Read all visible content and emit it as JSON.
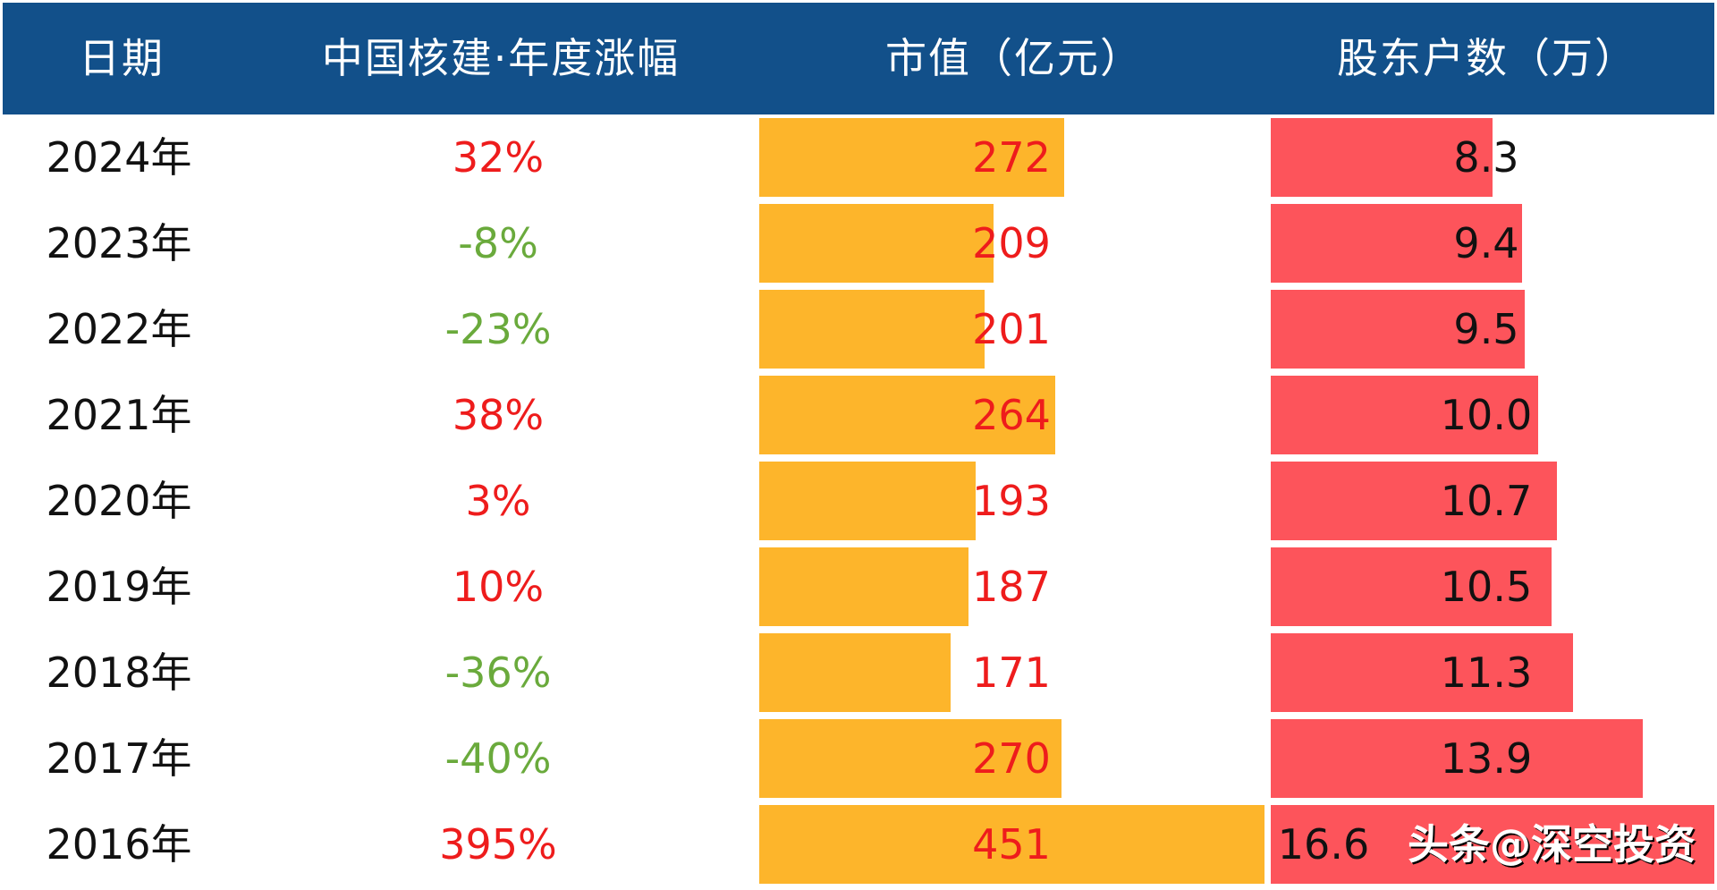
{
  "chart_data": {
    "type": "table",
    "columns": [
      "日期",
      "中国核建·年度涨幅",
      "市值（亿元）",
      "股东户数（万）"
    ],
    "rows": [
      {
        "date": "2024年",
        "change": "32%",
        "cap": 272,
        "cap_label": "272",
        "holders": 8.3,
        "holders_label": "8.3"
      },
      {
        "date": "2023年",
        "change": "-8%",
        "cap": 209,
        "cap_label": "209",
        "holders": 9.4,
        "holders_label": "9.4"
      },
      {
        "date": "2022年",
        "change": "-23%",
        "cap": 201,
        "cap_label": "201",
        "holders": 9.5,
        "holders_label": "9.5"
      },
      {
        "date": "2021年",
        "change": "38%",
        "cap": 264,
        "cap_label": "264",
        "holders": 10.0,
        "holders_label": "10.0"
      },
      {
        "date": "2020年",
        "change": "3%",
        "cap": 193,
        "cap_label": "193",
        "holders": 10.7,
        "holders_label": "10.7"
      },
      {
        "date": "2019年",
        "change": "10%",
        "cap": 187,
        "cap_label": "187",
        "holders": 10.5,
        "holders_label": "10.5"
      },
      {
        "date": "2018年",
        "change": "-36%",
        "cap": 171,
        "cap_label": "171",
        "holders": 11.3,
        "holders_label": "11.3"
      },
      {
        "date": "2017年",
        "change": "-40%",
        "cap": 270,
        "cap_label": "270",
        "holders": 13.9,
        "holders_label": "13.9"
      },
      {
        "date": "2016年",
        "change": "395%",
        "cap": 451,
        "cap_label": "451",
        "holders": 16.6,
        "holders_label": "16.6"
      }
    ],
    "colors": {
      "header": "#12508a",
      "cap_bar": "#fdb52b",
      "holders_bar": "#fd545b",
      "positive": "#ee1c1c",
      "negative": "#6aaa3c",
      "value_text": "#ee1c1c"
    }
  },
  "watermark": "头条@深空投资"
}
